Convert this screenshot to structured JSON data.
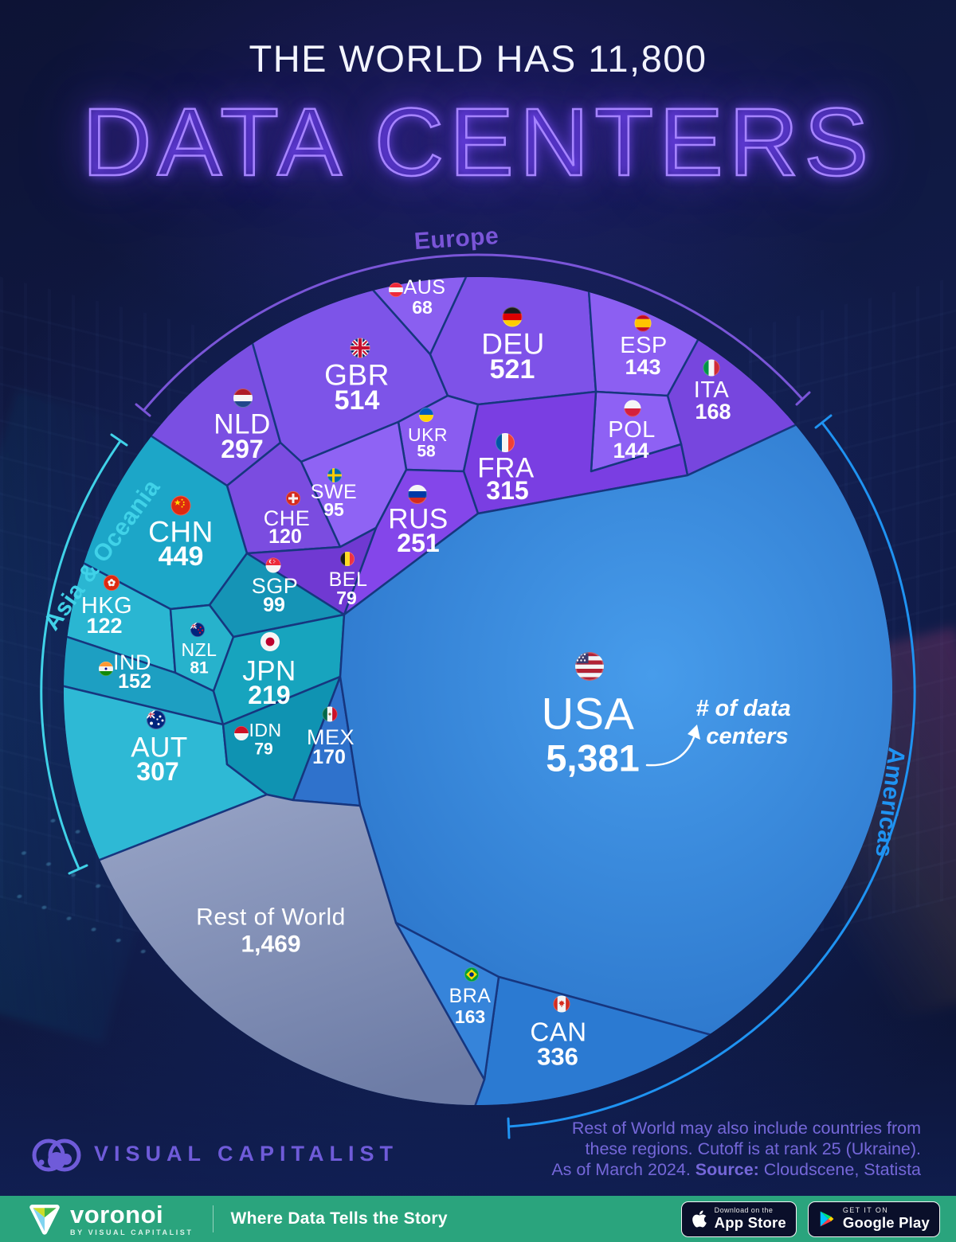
{
  "header": {
    "title_line1": "THE WORLD HAS 11,800",
    "title_line2": "DATA CENTERS"
  },
  "chart_data": {
    "type": "voronoi-circle",
    "title": "The World Has 11,800 Data Centers",
    "total": 11800,
    "unit": "data centers",
    "annotation_lines": [
      "# of data",
      "centers"
    ],
    "legend_position": "around-circle",
    "regions": [
      {
        "name": "Europe",
        "color": "#7a55d8",
        "countries": [
          {
            "code": "DEU",
            "value": 521
          },
          {
            "code": "GBR",
            "value": 514
          },
          {
            "code": "FRA",
            "value": 315
          },
          {
            "code": "NLD",
            "value": 297
          },
          {
            "code": "RUS",
            "value": 251
          },
          {
            "code": "ITA",
            "value": 168
          },
          {
            "code": "POL",
            "value": 144
          },
          {
            "code": "ESP",
            "value": 143
          },
          {
            "code": "CHE",
            "value": 120
          },
          {
            "code": "SWE",
            "value": 95
          },
          {
            "code": "BEL",
            "value": 79
          },
          {
            "code": "AUS",
            "value": 68
          },
          {
            "code": "UKR",
            "value": 58
          }
        ]
      },
      {
        "name": "Asia & Oceania",
        "color": "#40d2e8",
        "countries": [
          {
            "code": "CHN",
            "value": 449
          },
          {
            "code": "AUT",
            "value": 307
          },
          {
            "code": "JPN",
            "value": 219
          },
          {
            "code": "IND",
            "value": 152
          },
          {
            "code": "HKG",
            "value": 122
          },
          {
            "code": "SGP",
            "value": 99
          },
          {
            "code": "NZL",
            "value": 81
          },
          {
            "code": "IDN",
            "value": 79
          }
        ]
      },
      {
        "name": "Americas",
        "color": "#1f93f2",
        "countries": [
          {
            "code": "USA",
            "value": 5381
          },
          {
            "code": "CAN",
            "value": 336
          },
          {
            "code": "MEX",
            "value": 170
          },
          {
            "code": "BRA",
            "value": 163
          }
        ]
      },
      {
        "name": "Rest of World",
        "color": "#8d99bd",
        "countries": [
          {
            "code": "ROW",
            "label": "Rest of World",
            "value": 1469
          }
        ]
      }
    ]
  },
  "footer": {
    "note_line1": "Rest of World may also include countries from",
    "note_line2": "these regions. Cutoff is at rank 25 (Ukraine).",
    "note_line3_prefix": "As of March 2024. ",
    "source_label": "Source:",
    "source_value": " Cloudscene, Statista",
    "visual_capitalist": "VISUAL CAPITALIST"
  },
  "brandbar": {
    "logo_text": "voronoi",
    "logo_sub": "BY VISUAL CAPITALIST",
    "tagline": "Where Data Tells the Story",
    "bar_color": "#2aa47d",
    "appstore_small": "Download on the",
    "appstore_big": "App Store",
    "gplay_small": "GET IT ON",
    "gplay_big": "Google Play"
  }
}
